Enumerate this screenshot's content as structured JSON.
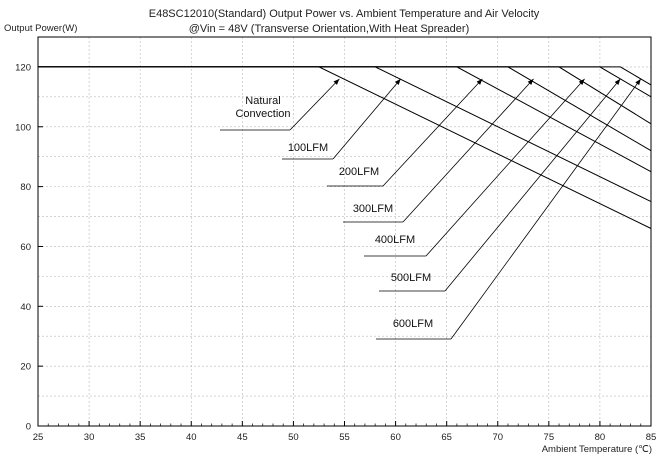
{
  "chart_data": {
    "type": "line",
    "title_line1": "E48SC12010(Standard)  Output Power vs. Ambient Temperature and Air Velocity",
    "title_line2": "@Vin = 48V (Transverse Orientation,With Heat Spreader)",
    "ylabel": "Output Power(W)",
    "xlabel": "Ambient Temperature (℃)",
    "xlim": [
      25,
      85
    ],
    "ylim": [
      0,
      130
    ],
    "x_ticks": [
      25,
      30,
      35,
      40,
      45,
      50,
      55,
      60,
      65,
      70,
      75,
      80,
      85
    ],
    "y_ticks": [
      0,
      20,
      40,
      60,
      80,
      100,
      120
    ],
    "grid": true,
    "series": [
      {
        "name": "Natural Convection",
        "x": [
          25,
          52.5,
          85
        ],
        "y": [
          120,
          120,
          66
        ]
      },
      {
        "name": "100LFM",
        "x": [
          25,
          58,
          85
        ],
        "y": [
          120,
          120,
          75
        ]
      },
      {
        "name": "200LFM",
        "x": [
          25,
          66,
          85
        ],
        "y": [
          120,
          120,
          85
        ]
      },
      {
        "name": "300LFM",
        "x": [
          25,
          71,
          85
        ],
        "y": [
          120,
          120,
          92
        ]
      },
      {
        "name": "400LFM",
        "x": [
          25,
          76,
          85
        ],
        "y": [
          120,
          120,
          101
        ]
      },
      {
        "name": "500LFM",
        "x": [
          25,
          80,
          85
        ],
        "y": [
          120,
          120,
          110
        ]
      },
      {
        "name": "600LFM",
        "x": [
          25,
          82,
          85
        ],
        "y": [
          120,
          120,
          114
        ]
      }
    ],
    "annotations": [
      {
        "series": 0,
        "lines": [
          "Natural",
          "Convection"
        ],
        "anchor": [
          54.5,
          116
        ]
      },
      {
        "series": 1,
        "lines": [
          "100LFM"
        ],
        "anchor": [
          60.5,
          116
        ]
      },
      {
        "series": 2,
        "lines": [
          "200LFM"
        ],
        "anchor": [
          68.5,
          116
        ]
      },
      {
        "series": 3,
        "lines": [
          "300LFM"
        ],
        "anchor": [
          73.5,
          116
        ]
      },
      {
        "series": 4,
        "lines": [
          "400LFM"
        ],
        "anchor": [
          78.5,
          116
        ]
      },
      {
        "series": 5,
        "lines": [
          "500LFM"
        ],
        "anchor": [
          82,
          116
        ]
      },
      {
        "series": 6,
        "lines": [
          "600LFM"
        ],
        "anchor": [
          84,
          116
        ]
      }
    ]
  }
}
